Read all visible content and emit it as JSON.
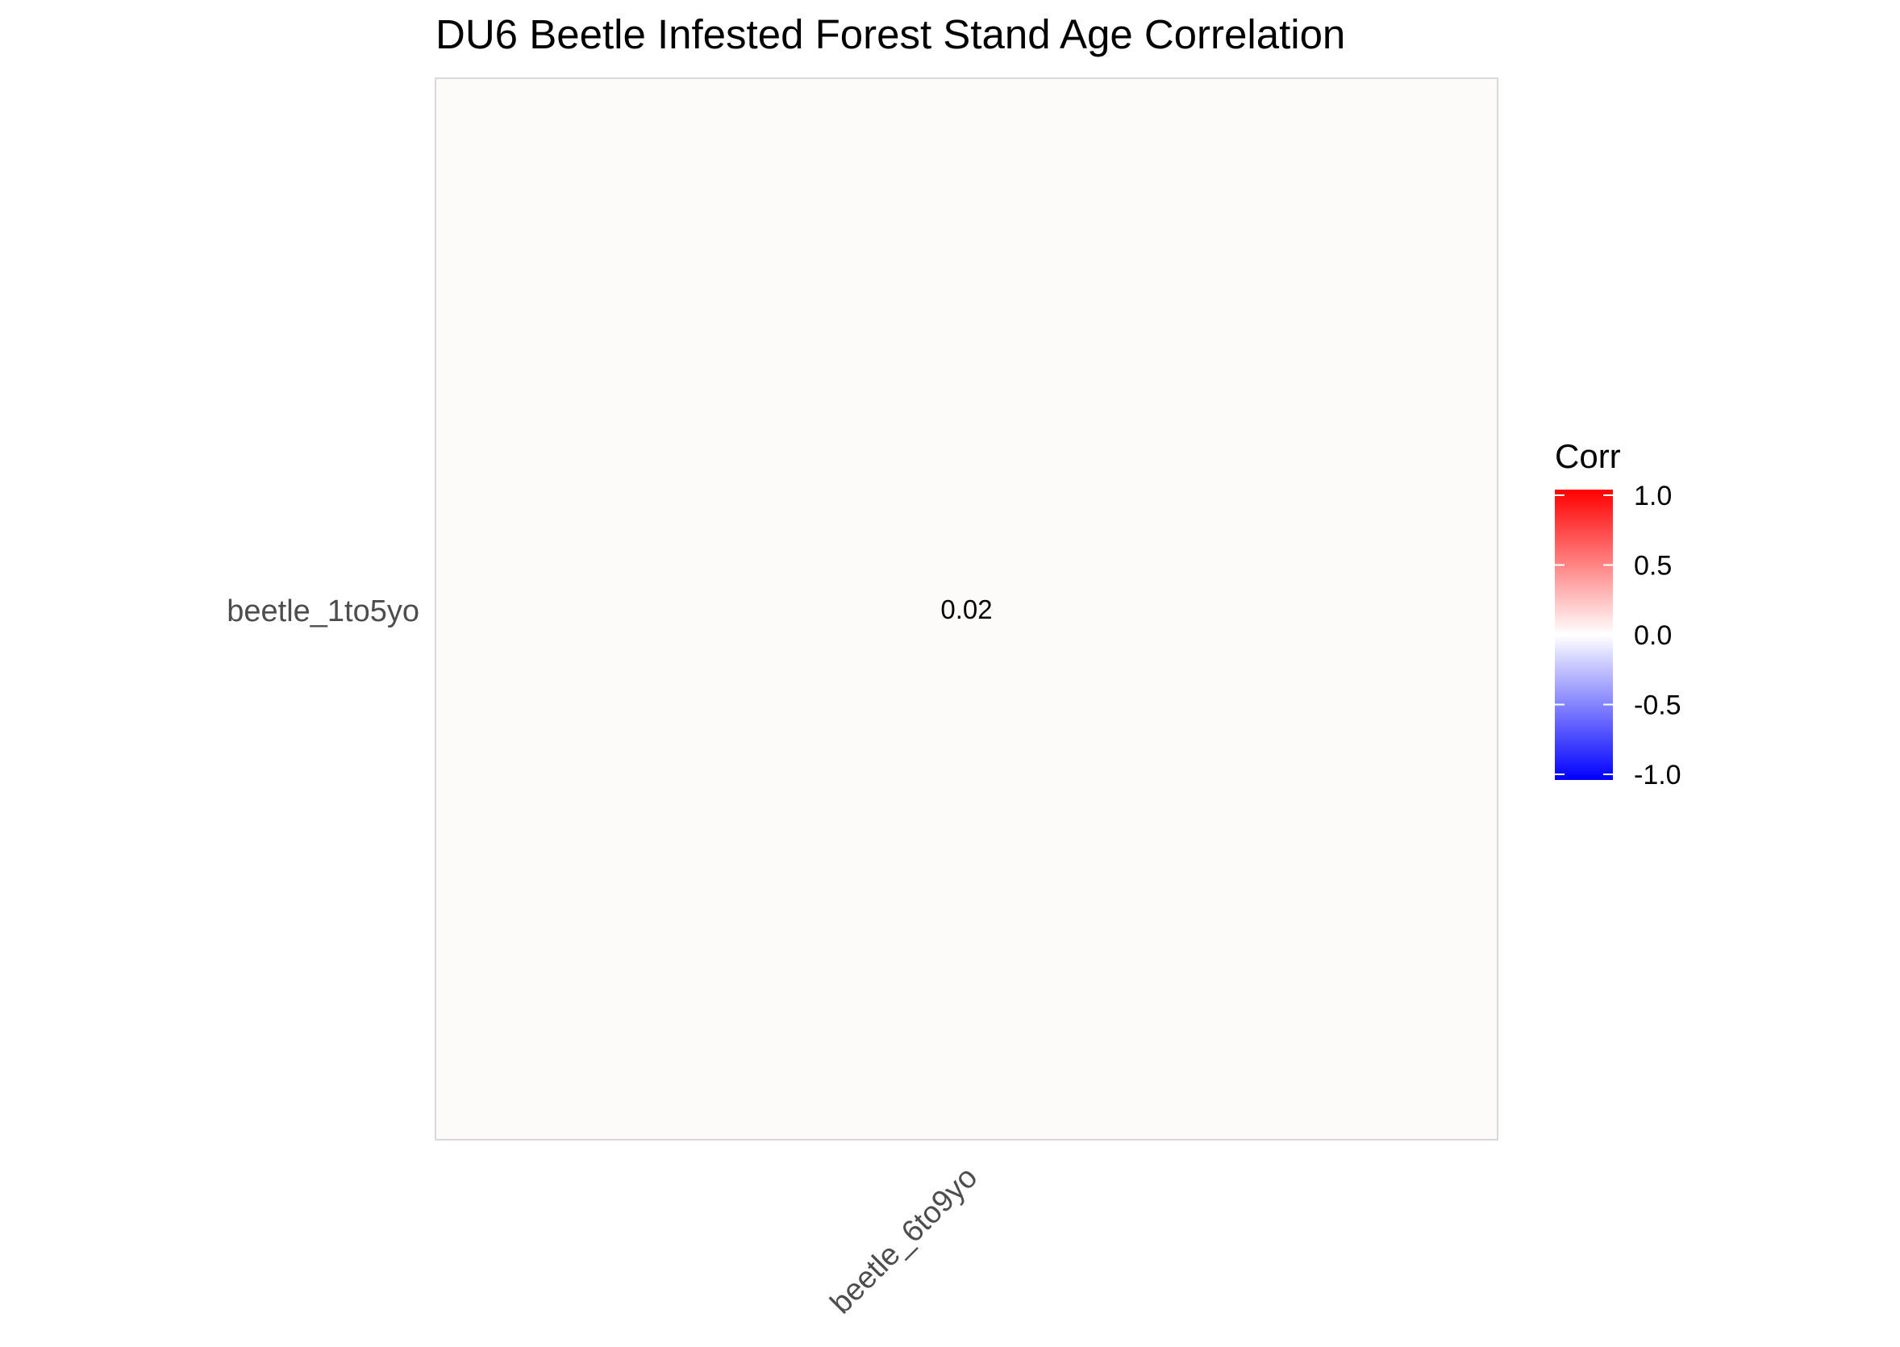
{
  "chart_data": {
    "type": "heatmap",
    "title": "DU6 Beetle Infested Forest Stand Age Correlation",
    "x_categories": [
      "beetle_6to9yo"
    ],
    "y_categories": [
      "beetle_1to5yo"
    ],
    "cells": [
      {
        "x": "beetle_6to9yo",
        "y": "beetle_1to5yo",
        "value": 0.02,
        "label": "0.02"
      }
    ],
    "legend": {
      "title": "Corr",
      "placement": "right",
      "range": [
        -1.0,
        1.0
      ],
      "ticks": [
        {
          "value": 1.0,
          "label": "1.0"
        },
        {
          "value": 0.5,
          "label": "0.5"
        },
        {
          "value": 0.0,
          "label": "0.0"
        },
        {
          "value": -0.5,
          "label": "-0.5"
        },
        {
          "value": -1.0,
          "label": "-1.0"
        }
      ],
      "colors": {
        "low": "#0000ff",
        "mid": "#ffffff",
        "high": "#ff0000"
      }
    },
    "grid": false
  }
}
